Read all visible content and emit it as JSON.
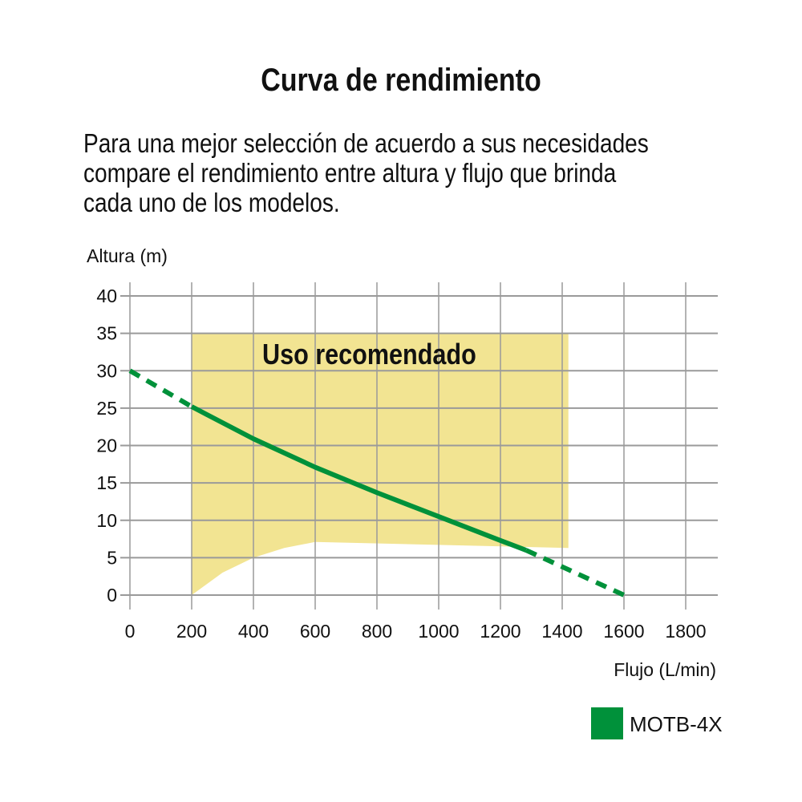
{
  "title": "Curva de rendimiento",
  "description": "Para una mejor selección de acuerdo a sus necesidades\ncompare el rendimiento entre altura y flujo que brinda\ncada uno de los modelos.",
  "chart_data": {
    "type": "line",
    "xlabel": "Flujo (L/min)",
    "ylabel": "Altura (m)",
    "xlim": [
      0,
      1800
    ],
    "ylim": [
      0,
      40
    ],
    "xticks": [
      0,
      200,
      400,
      600,
      800,
      1000,
      1200,
      1400,
      1600,
      1800
    ],
    "yticks": [
      0,
      5,
      10,
      15,
      20,
      25,
      30,
      35,
      40
    ],
    "grid": true,
    "legend_position": "bottom-right",
    "recommended_region": {
      "label": "Uso recomendado",
      "color": "#f2e492",
      "x_range": [
        200,
        1420
      ],
      "top": 35,
      "bottom": [
        [
          200,
          0
        ],
        [
          300,
          3
        ],
        [
          400,
          5
        ],
        [
          500,
          6.3
        ],
        [
          600,
          7.1
        ],
        [
          1420,
          6.3
        ]
      ]
    },
    "series": [
      {
        "name": "MOTB-4X",
        "color": "#00913a",
        "solid": [
          [
            200,
            25.2
          ],
          [
            400,
            20.9
          ],
          [
            600,
            17.1
          ],
          [
            800,
            13.7
          ],
          [
            1000,
            10.5
          ],
          [
            1200,
            7.3
          ],
          [
            1283,
            6.0
          ]
        ],
        "dashed_start": [
          [
            0,
            30
          ],
          [
            200,
            25.2
          ]
        ],
        "dashed_end": [
          [
            1283,
            6.0
          ],
          [
            1600,
            0
          ]
        ]
      }
    ]
  }
}
